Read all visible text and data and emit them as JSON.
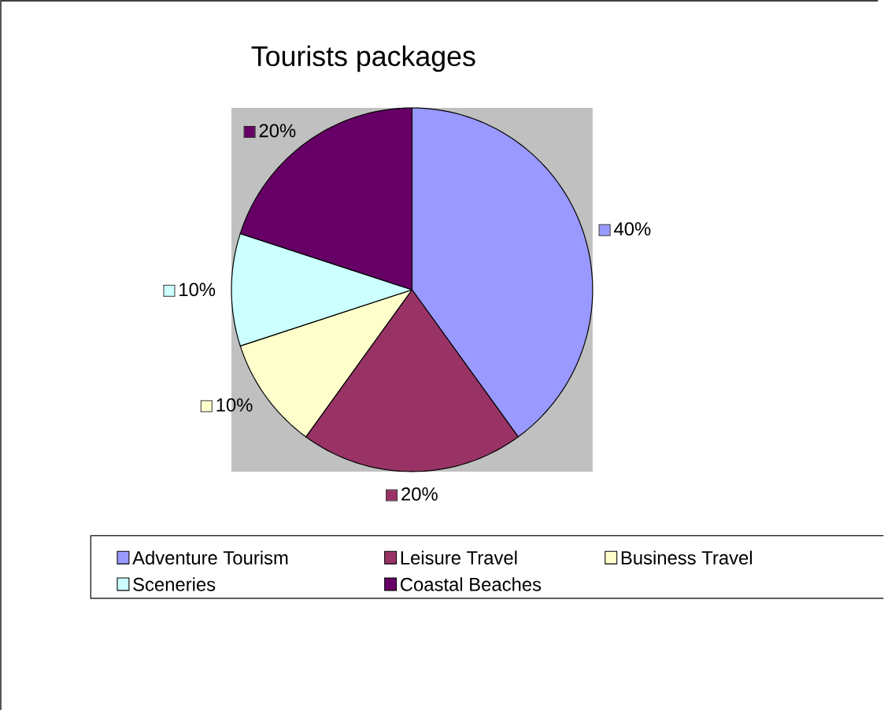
{
  "chart_data": {
    "type": "pie",
    "title": "Tourists packages",
    "categories": [
      "Adventure Tourism",
      "Leisure Travel",
      "Business Travel",
      "Sceneries",
      "Coastal Beaches"
    ],
    "values": [
      40,
      20,
      10,
      10,
      20
    ],
    "colors": [
      "#9999ff",
      "#993366",
      "#ffffcc",
      "#ccffff",
      "#660066"
    ],
    "value_labels": [
      "40%",
      "20%",
      "10%",
      "10%",
      "20%"
    ],
    "legend": "bottom"
  }
}
